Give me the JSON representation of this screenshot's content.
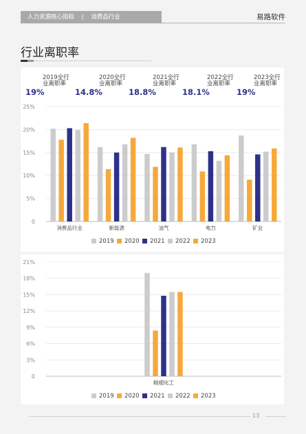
{
  "header": {
    "section": "人力资源核心指标",
    "separator": "|",
    "subsection": "消费品行业",
    "brand": "易路软件"
  },
  "page_title": "行业离职率",
  "stats": [
    {
      "label": "2019全行业离职率",
      "value": "19%"
    },
    {
      "label": "2020全行业离职率",
      "value": "14.8%"
    },
    {
      "label": "2021全行业离职率",
      "value": "18.8%"
    },
    {
      "label": "2022全行业离职率",
      "value": "18.1%"
    },
    {
      "label": "2023全行业离职率",
      "value": "19%"
    }
  ],
  "colors": {
    "2019": "#cccccc",
    "2020": "#f5a93b",
    "2021": "#2e3189",
    "2022": "#cccccc",
    "2023": "#f5a93b"
  },
  "chart_data": [
    {
      "type": "bar",
      "categories": [
        "消费品行业",
        "新能源",
        "油气",
        "电力",
        "矿业"
      ],
      "series": [
        {
          "name": "2019",
          "values": [
            20.2,
            16.2,
            14.7,
            16.8,
            18.7
          ]
        },
        {
          "name": "2020",
          "values": [
            17.8,
            11.4,
            11.9,
            10.9,
            9.1
          ]
        },
        {
          "name": "2021",
          "values": [
            20.3,
            15.0,
            16.2,
            15.3,
            14.6
          ]
        },
        {
          "name": "2022",
          "values": [
            19.9,
            16.8,
            15.0,
            13.2,
            15.2
          ]
        },
        {
          "name": "2023",
          "values": [
            21.4,
            18.2,
            16.1,
            14.4,
            15.9
          ]
        }
      ],
      "yticks": [
        "0",
        "5%",
        "10%",
        "15%",
        "20%",
        "25%"
      ],
      "ylim": [
        0,
        25
      ]
    },
    {
      "type": "bar",
      "categories": [
        "精细化工"
      ],
      "series": [
        {
          "name": "2019",
          "values": [
            19.0
          ]
        },
        {
          "name": "2020",
          "values": [
            8.4
          ]
        },
        {
          "name": "2021",
          "values": [
            14.8
          ]
        },
        {
          "name": "2022",
          "values": [
            15.5
          ]
        },
        {
          "name": "2023",
          "values": [
            15.5
          ]
        }
      ],
      "yticks": [
        "0",
        "3%",
        "6%",
        "9%",
        "12%",
        "15%",
        "18%",
        "21%"
      ],
      "ylim": [
        0,
        21
      ]
    }
  ],
  "footer": {
    "page_number": "13"
  }
}
